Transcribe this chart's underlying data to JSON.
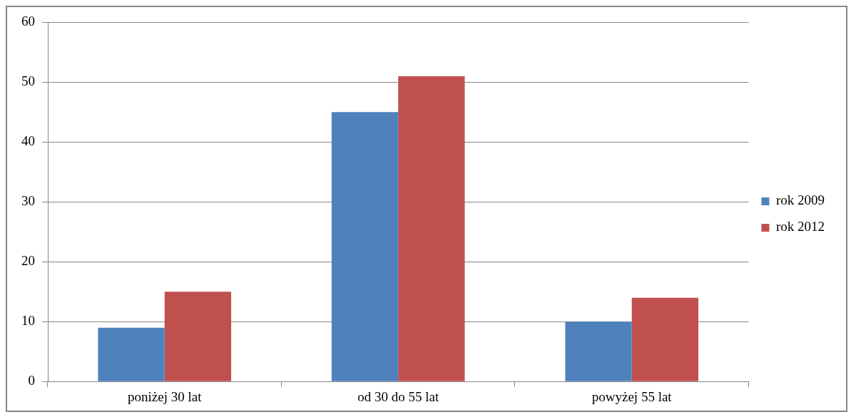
{
  "chart_data": {
    "type": "bar",
    "categories": [
      "poniżej 30 lat",
      "od 30 do 55 lat",
      "powyżej 55 lat"
    ],
    "series": [
      {
        "name": "rok 2009",
        "color": "#4f81bd",
        "values": [
          9,
          45,
          10
        ]
      },
      {
        "name": "rok 2012",
        "color": "#c0504d",
        "values": [
          15,
          51,
          14
        ]
      }
    ],
    "ylim": [
      0,
      60
    ],
    "yticks": [
      0,
      10,
      20,
      30,
      40,
      50,
      60
    ],
    "grid": "y",
    "legend": "right"
  }
}
